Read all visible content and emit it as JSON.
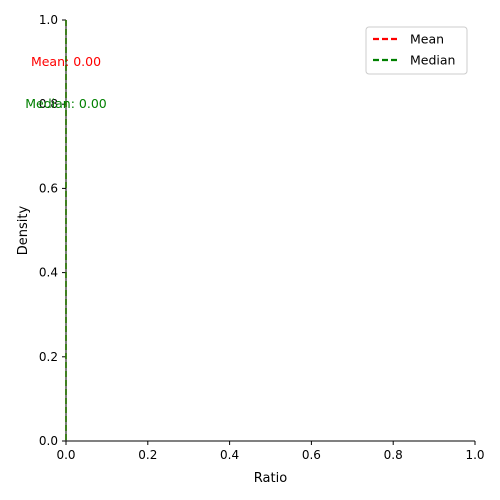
{
  "chart_data": {
    "type": "line",
    "title": "",
    "xlabel": "Ratio",
    "ylabel": "Density",
    "xlim": [
      0,
      1
    ],
    "ylim": [
      0,
      1
    ],
    "x_ticks": [
      0.0,
      0.2,
      0.4,
      0.6,
      0.8,
      1.0
    ],
    "y_ticks": [
      0.0,
      0.2,
      0.4,
      0.6,
      0.8,
      1.0
    ],
    "x_tick_labels": [
      "0.0",
      "0.2",
      "0.4",
      "0.6",
      "0.8",
      "1.0"
    ],
    "y_tick_labels": [
      "0.0",
      "0.2",
      "0.4",
      "0.6",
      "0.8",
      "1.0"
    ],
    "grid": false,
    "legend_position": "top-right",
    "series": [
      {
        "name": "Mean",
        "kind": "vertical-line",
        "style": "dashed",
        "color": "#ff0000",
        "x": 0.0,
        "annotation": "Mean: 0.00",
        "annotation_y": 0.9
      },
      {
        "name": "Median",
        "kind": "vertical-line",
        "style": "dashed",
        "color": "#008000",
        "x": 0.0,
        "annotation": "Median: 0.00",
        "annotation_y": 0.8
      }
    ]
  }
}
